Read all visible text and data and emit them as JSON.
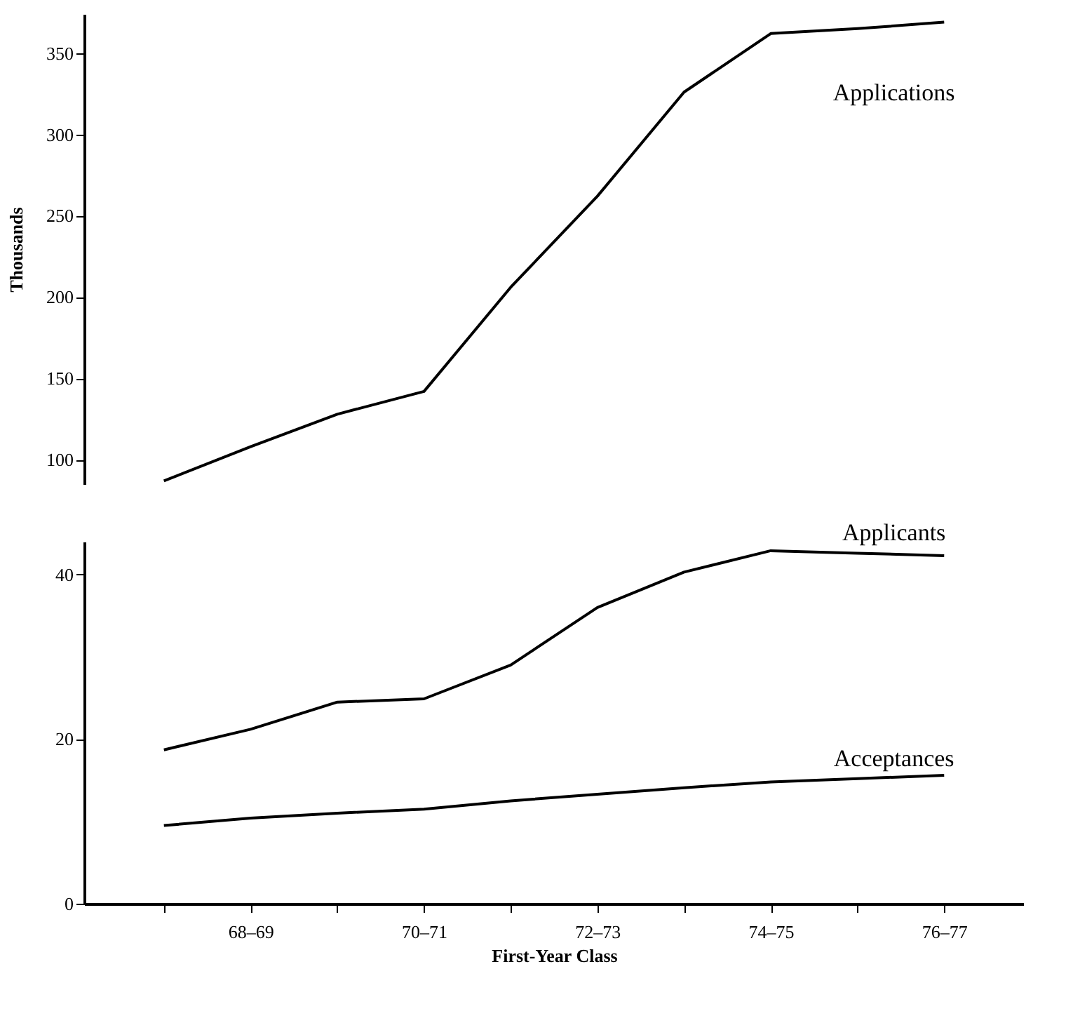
{
  "chart_data": [
    {
      "type": "line",
      "ylabel": "Thousands",
      "categories": [
        null,
        null,
        null,
        null,
        null,
        null,
        null,
        null,
        null,
        null
      ],
      "ylim": [
        85,
        374
      ],
      "yticks": [
        100,
        150,
        200,
        250,
        300,
        350
      ],
      "grid": false,
      "legend": false,
      "tick_labels": "y",
      "marker": "none",
      "line_style": "solid",
      "series": [
        {
          "name": "Applications",
          "color": "#000000",
          "values": [
            87,
            108,
            128,
            142,
            206,
            262,
            326,
            362,
            365,
            369
          ]
        }
      ]
    },
    {
      "type": "line",
      "xlabel": "First-Year Class",
      "categories": [
        null,
        "68–69",
        null,
        "70–71",
        null,
        "72–73",
        null,
        "74–75",
        null,
        "76–77"
      ],
      "ylim": [
        0,
        44
      ],
      "yticks": [
        0,
        20,
        40
      ],
      "grid": false,
      "legend": false,
      "marker": "none",
      "line_style": "solid",
      "series": [
        {
          "name": "Applicants",
          "color": "#000000",
          "values": [
            18.7,
            21.2,
            24.5,
            24.9,
            29.0,
            36.0,
            40.3,
            42.9,
            42.6,
            42.3
          ]
        },
        {
          "name": "Acceptances",
          "color": "#000000",
          "values": [
            9.5,
            10.4,
            11.0,
            11.5,
            12.5,
            13.3,
            14.1,
            14.8,
            15.2,
            15.6
          ]
        }
      ]
    }
  ]
}
